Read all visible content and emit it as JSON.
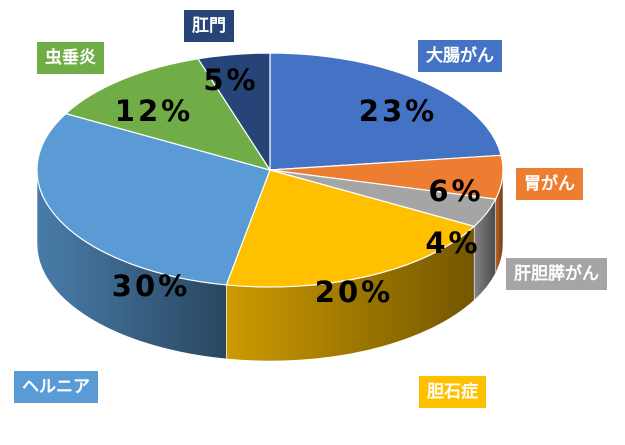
{
  "chart_data": {
    "type": "pie",
    "style": "3d",
    "slices": [
      {
        "category": "大腸がん",
        "value": 23,
        "label": "23%",
        "color": "#4472c4"
      },
      {
        "category": "胃がん",
        "value": 6,
        "label": "6%",
        "color": "#ed7d31"
      },
      {
        "category": "肝胆膵がん",
        "value": 4,
        "label": "4%",
        "color": "#a5a5a5"
      },
      {
        "category": "胆石症",
        "value": 20,
        "label": "20%",
        "color": "#ffc000"
      },
      {
        "category": "ヘルニア",
        "value": 30,
        "label": "30%",
        "color": "#5b9bd5"
      },
      {
        "category": "虫垂炎",
        "value": 12,
        "label": "12%",
        "color": "#70ad47"
      },
      {
        "category": "肛門",
        "value": 5,
        "label": "5%",
        "color": "#264478"
      }
    ]
  }
}
